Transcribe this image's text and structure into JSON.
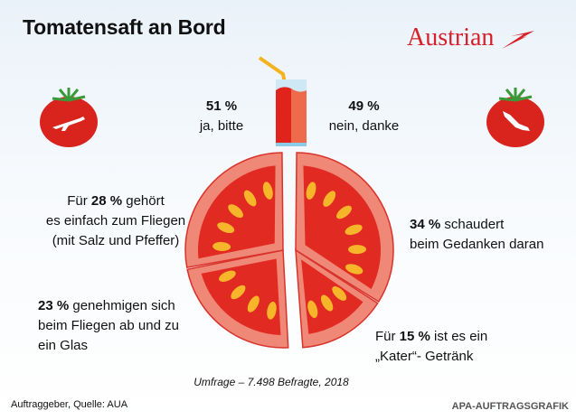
{
  "title": "Tomatensaft an Bord",
  "logo": "Austrian",
  "poll": {
    "yes": {
      "pct": "51 %",
      "label": "ja, bitte"
    },
    "no": {
      "pct": "49 %",
      "label": "nein, danke"
    }
  },
  "labels": {
    "a": {
      "pre": "Für ",
      "pct": "28 %",
      "post": " gehört",
      "line2": "es einfach zum Fliegen",
      "line3": "(mit Salz und Pfeffer)"
    },
    "b": {
      "pct": "34 %",
      "post": " schaudert",
      "line2": "beim Gedanken daran"
    },
    "c": {
      "pct": "23 %",
      "post": " genehmigen sich",
      "line2": "beim Fliegen ab und zu",
      "line3": "ein Glas"
    },
    "d": {
      "pre": "Für ",
      "pct": "15 %",
      "post": " ist es ein",
      "line2": "„Kater“- Getränk"
    }
  },
  "survey": "Umfrage – 7.498 Befragte, 2018",
  "source": "Auftraggeber, Quelle: AUA",
  "credit": "APA-AUFTRAGSGRAFIK",
  "chart_data": [
    {
      "type": "pie",
      "slices": [
        {
          "label": "schaudert beim Gedanken daran",
          "value": 34
        },
        {
          "label": "„Kater“- Getränk",
          "value": 15
        },
        {
          "label": "genehmigen sich beim Fliegen ab und zu ein Glas",
          "value": 23
        },
        {
          "label": "gehört es einfach zum Fliegen (mit Salz und Pfeffer)",
          "value": 28
        }
      ],
      "colors": {
        "rim": "#f08878",
        "flesh": "#e02a22",
        "seed": "#f7b52a"
      }
    },
    {
      "type": "bar",
      "categories": [
        "ja, bitte",
        "nein, danke"
      ],
      "values": [
        51,
        49
      ],
      "colors": [
        "#e0231d",
        "#ef6a4a"
      ]
    }
  ]
}
